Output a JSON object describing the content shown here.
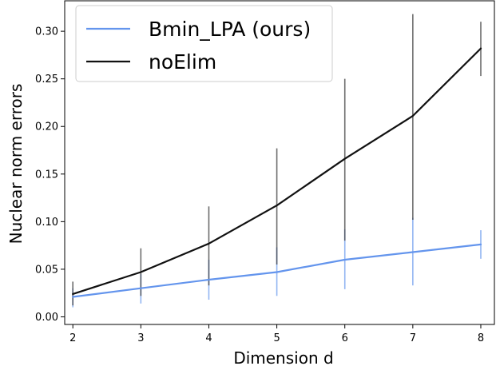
{
  "chart_data": {
    "type": "line",
    "title": "",
    "xlabel": "Dimension d",
    "ylabel": "Nuclear norm errors",
    "x": [
      2,
      3,
      4,
      5,
      6,
      7,
      8
    ],
    "xlim": [
      1.88,
      8.2
    ],
    "ylim": [
      -0.008,
      0.332
    ],
    "xticks": [
      "2",
      "3",
      "4",
      "5",
      "6",
      "7",
      "8"
    ],
    "yticks": [
      "0.00",
      "0.05",
      "0.10",
      "0.15",
      "0.20",
      "0.25",
      "0.30"
    ],
    "grid": false,
    "legend_position": "top-left",
    "series": [
      {
        "name": "Bmin_LPA (ours)",
        "color": "#6495ED",
        "values": [
          0.021,
          0.03,
          0.039,
          0.047,
          0.06,
          0.068,
          0.076
        ],
        "err_low": [
          0.01,
          0.014,
          0.018,
          0.022,
          0.029,
          0.033,
          0.061
        ],
        "err_high": [
          0.03,
          0.045,
          0.06,
          0.073,
          0.092,
          0.104,
          0.091
        ]
      },
      {
        "name": "noElim",
        "color": "#111111",
        "values": [
          0.024,
          0.047,
          0.077,
          0.117,
          0.166,
          0.211,
          0.282
        ],
        "err_low": [
          0.012,
          0.022,
          0.033,
          0.055,
          0.08,
          0.102,
          0.253
        ],
        "err_high": [
          0.037,
          0.072,
          0.116,
          0.177,
          0.25,
          0.318,
          0.31
        ]
      }
    ]
  }
}
